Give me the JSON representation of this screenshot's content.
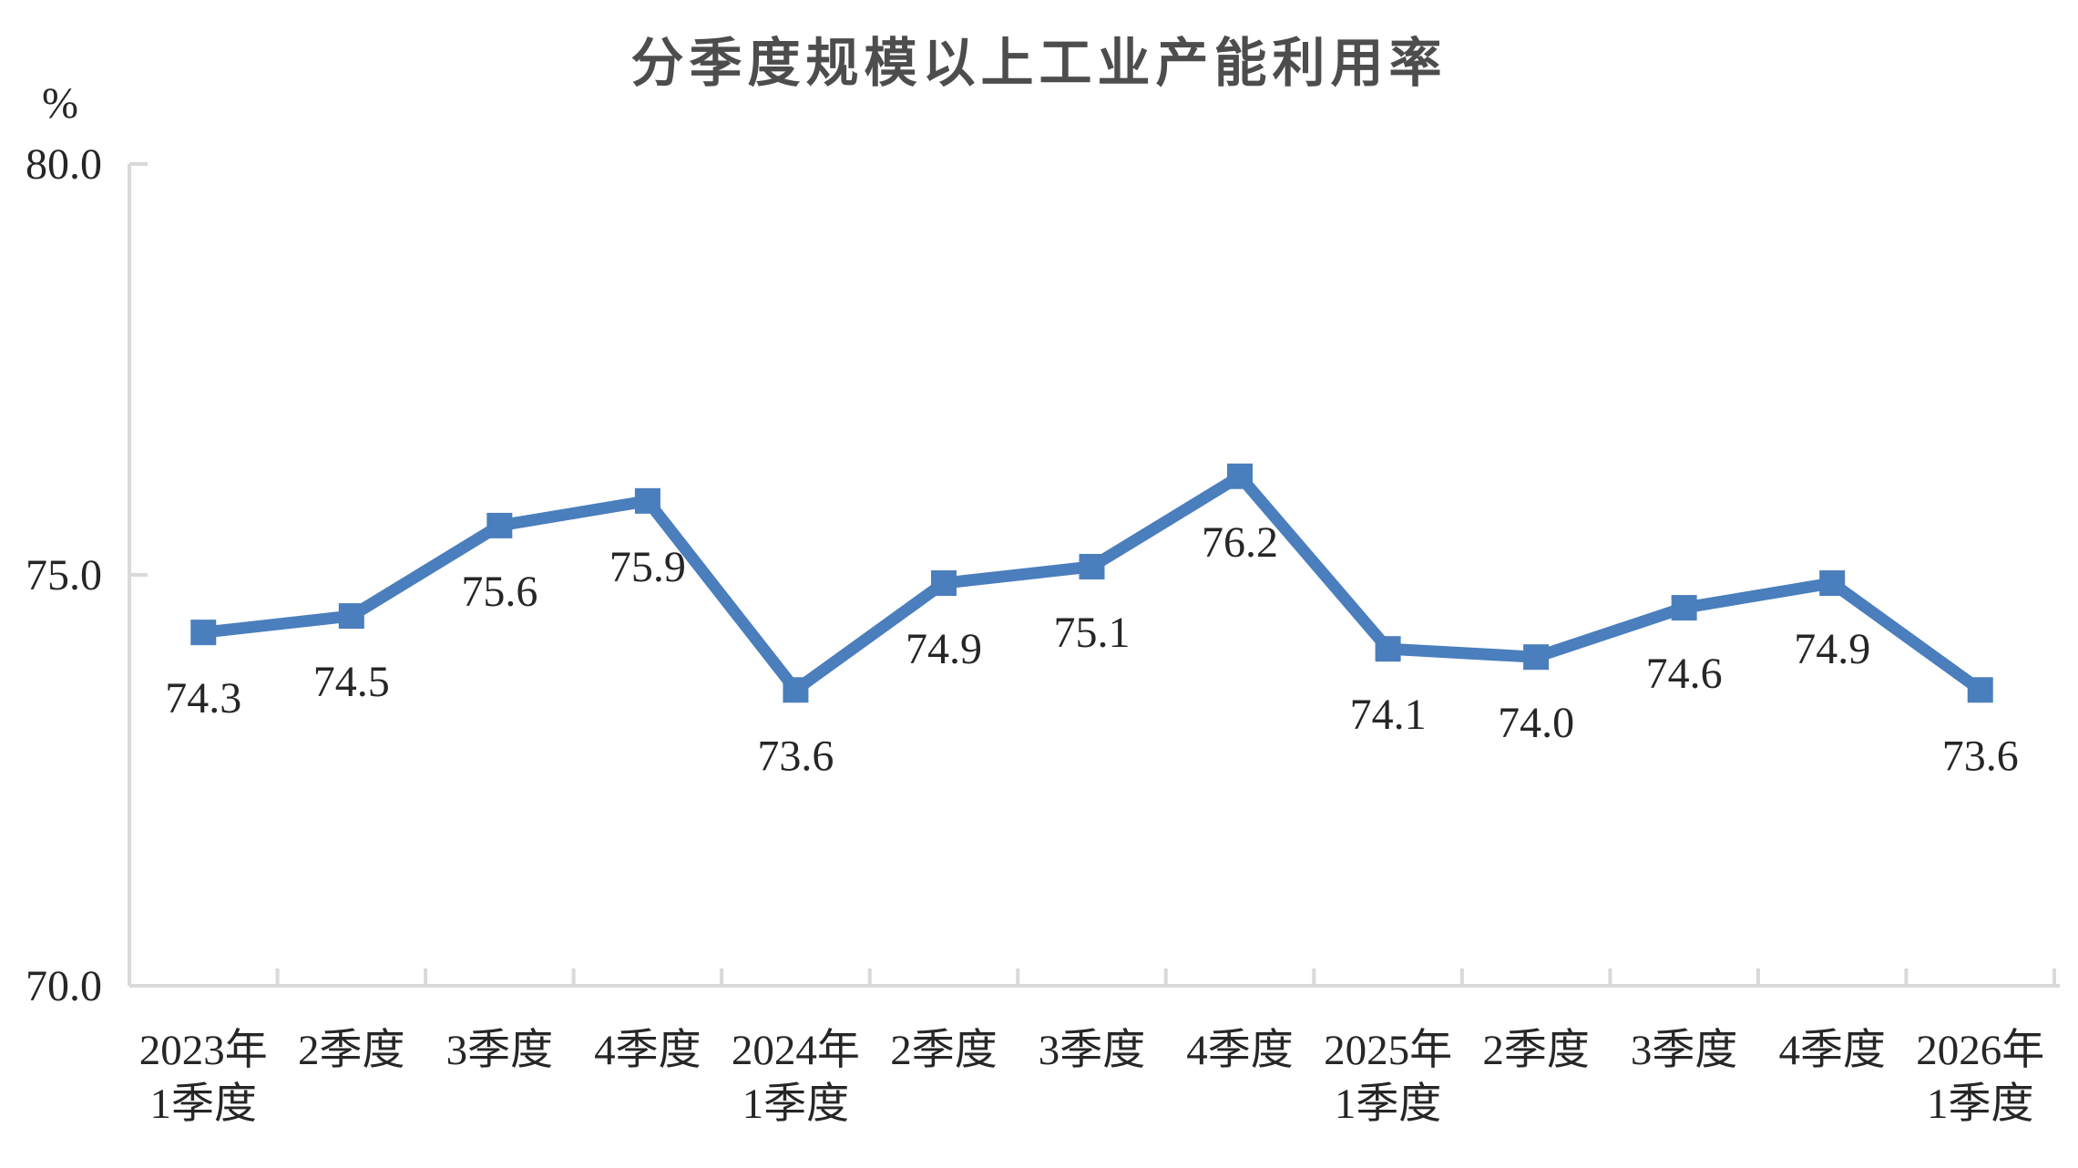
{
  "chart_data": {
    "type": "line",
    "title": "分季度规模以上工业产能利用率",
    "unit_label": "%",
    "ylim": [
      70,
      80
    ],
    "y_ticks": [
      {
        "value": 80,
        "label": "80.0"
      },
      {
        "value": 75,
        "label": "75.0"
      },
      {
        "value": 70,
        "label": "70.0"
      }
    ],
    "categories": [
      "2023年\n1季度",
      "2季度",
      "3季度",
      "4季度",
      "2024年\n1季度",
      "2季度",
      "3季度",
      "4季度",
      "2025年\n1季度",
      "2季度",
      "3季度",
      "4季度",
      "2026年\n1季度"
    ],
    "values": [
      74.3,
      74.5,
      75.6,
      75.9,
      73.6,
      74.9,
      75.1,
      76.2,
      74.1,
      74.0,
      74.6,
      74.9,
      73.6
    ],
    "data_labels": [
      "74.3",
      "74.5",
      "75.6",
      "75.9",
      "73.6",
      "74.9",
      "75.1",
      "76.2",
      "74.1",
      "74.0",
      "74.6",
      "74.9",
      "73.6"
    ],
    "marker": "square",
    "grid": false,
    "legend": "none",
    "colors": {
      "line": "#4A7EBC",
      "marker": "#4A7EBC",
      "axis": "#D9D9D9",
      "text": "#262626",
      "title": "#4D4D4D"
    }
  }
}
